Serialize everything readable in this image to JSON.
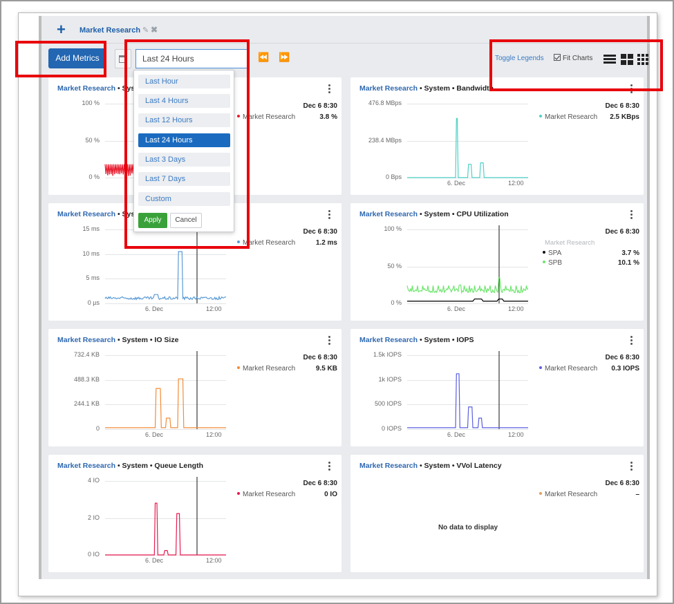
{
  "tab": {
    "name": "Market Research"
  },
  "toolbar": {
    "add_metrics_label": "Add Metrics",
    "range_value": "Last 24 Hours",
    "toggle_legends_label": "Toggle Legends",
    "fit_charts_label": "Fit Charts",
    "fit_charts_checked": true
  },
  "dropdown": {
    "options": [
      "Last Hour",
      "Last 4 Hours",
      "Last 12 Hours",
      "Last 24 Hours",
      "Last 3 Days",
      "Last 7 Days",
      "Custom"
    ],
    "selected": "Last 24 Hours",
    "apply_label": "Apply",
    "cancel_label": "Cancel"
  },
  "cards": [
    {
      "group": "Market Research",
      "title_suffix": "• Syst",
      "color": "#e8192c",
      "y_ticks": [
        "100 %",
        "50 %",
        "0 %"
      ],
      "x_ticks": [],
      "date": "Dec 6 8:30",
      "legend": [
        {
          "name": "Market Research",
          "value": "3.8 %",
          "color": "#e8192c"
        }
      ]
    },
    {
      "group": "Market Research",
      "title_suffix": "• System • Bandwidth",
      "color": "#4fd1c5",
      "y_ticks": [
        "476.8 MBps",
        "238.4 MBps",
        "0 Bps"
      ],
      "x_ticks": [
        "6. Dec",
        "12:00"
      ],
      "date": "Dec 6 8:30",
      "legend": [
        {
          "name": "Market Research",
          "value": "2.5 KBps",
          "color": "#4fd1c5"
        }
      ]
    },
    {
      "group": "Market Research",
      "title_suffix": "• Syst",
      "color": "#5b9bd5",
      "y_ticks": [
        "15 ms",
        "10 ms",
        "5 ms",
        "0 µs"
      ],
      "x_ticks": [
        "6. Dec",
        "12:00"
      ],
      "date": "Dec 6 8:30",
      "legend": [
        {
          "name": "Market Research",
          "value": "1.2 ms",
          "color": "#5b9bd5"
        }
      ]
    },
    {
      "group": "Market Research",
      "title_suffix": "• System • CPU Utilization",
      "color": "#6ee56e",
      "y_ticks": [
        "100 %",
        "50 %",
        "0 %"
      ],
      "x_ticks": [
        "6. Dec",
        "12:00"
      ],
      "date": "Dec 6 8:30",
      "legend_group": "Market Research",
      "legend": [
        {
          "name": "SPA",
          "value": "3.7 %",
          "color": "#111111"
        },
        {
          "name": "SPB",
          "value": "10.1 %",
          "color": "#6ee56e"
        }
      ]
    },
    {
      "group": "Market Research",
      "title_suffix": "• System • IO Size",
      "color": "#f28c38",
      "y_ticks": [
        "732.4 KB",
        "488.3 KB",
        "244.1 KB",
        "0"
      ],
      "x_ticks": [
        "6. Dec",
        "12:00"
      ],
      "date": "Dec 6 8:30",
      "legend": [
        {
          "name": "Market Research",
          "value": "9.5 KB",
          "color": "#f28c38"
        }
      ]
    },
    {
      "group": "Market Research",
      "title_suffix": "• System • IOPS",
      "color": "#5a5ee0",
      "y_ticks": [
        "1.5k IOPS",
        "1k IOPS",
        "500 IOPS",
        "0 IOPS"
      ],
      "x_ticks": [
        "6. Dec",
        "12:00"
      ],
      "date": "Dec 6 8:30",
      "legend": [
        {
          "name": "Market Research",
          "value": "0.3 IOPS",
          "color": "#5a5ee0"
        }
      ]
    },
    {
      "group": "Market Research",
      "title_suffix": "• System • Queue Length",
      "color": "#e8194f",
      "y_ticks": [
        "4 IO",
        "2 IO",
        "0 IO"
      ],
      "x_ticks": [
        "6. Dec",
        "12:00"
      ],
      "date": "Dec 6 8:30",
      "legend": [
        {
          "name": "Market Research",
          "value": "0 IO",
          "color": "#e8194f"
        }
      ]
    },
    {
      "group": "Market Research",
      "title_suffix": "• System • VVol Latency",
      "color": "#e0a060",
      "y_ticks": [],
      "x_ticks": [],
      "date": "Dec 6 8:30",
      "legend": [
        {
          "name": "Market Research",
          "value": "–",
          "color": "#e0a060"
        }
      ],
      "no_data": "No data to display"
    }
  ]
}
